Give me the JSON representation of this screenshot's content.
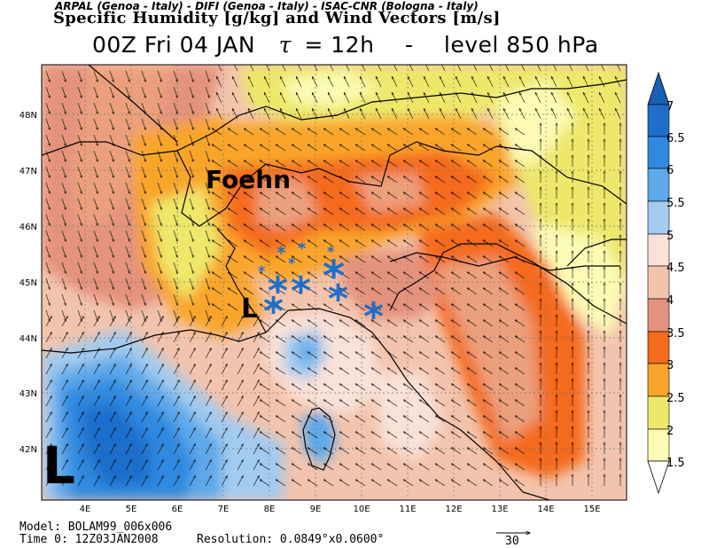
{
  "header": {
    "credits": "ARPAL (Genoa - Italy)  -  DIFI (Genoa - Italy)  -  ISAC-CNR (Bologna - Italy)",
    "title": "Specific Humidity [g/kg] and Wind Vectors [m/s]",
    "run_time": "00Z Fri 04 JAN",
    "tau_symbol": "τ",
    "tau_value": "= 12h",
    "separator": "-",
    "level": "level 850 hPa"
  },
  "axes": {
    "lat_labels": [
      "48N",
      "47N",
      "46N",
      "45N",
      "44N",
      "43N",
      "42N"
    ],
    "lat_values": [
      48,
      47,
      46,
      45,
      44,
      43,
      42
    ],
    "lon_labels": [
      "4E",
      "5E",
      "6E",
      "7E",
      "8E",
      "9E",
      "10E",
      "11E",
      "12E",
      "13E",
      "14E",
      "15E"
    ],
    "lon_values": [
      4,
      5,
      6,
      7,
      8,
      9,
      10,
      11,
      12,
      13,
      14,
      15
    ],
    "lon_range": [
      3.1,
      16.4
    ],
    "lat_range": [
      41.1,
      48.8
    ],
    "grid": true
  },
  "colorbar": {
    "levels": [
      "1.5",
      "2",
      "2.5",
      "3",
      "3.5",
      "4",
      "4.5",
      "5",
      "5.5",
      "6",
      "6.5",
      "7"
    ],
    "colors": [
      "#fdfbb4",
      "#ede86a",
      "#f9a52a",
      "#f56a1d",
      "#eba07d",
      "#e3927d",
      "#f3c4ad",
      "#fbe1d8",
      "#a2cbef",
      "#5da9ea",
      "#2f8ae0",
      "#1f6ecc",
      "#185fb6"
    ]
  },
  "annotations": {
    "foehn_label": "Foehn",
    "low_small": "L",
    "low_large": "L",
    "star_symbol": "*"
  },
  "footer": {
    "model": "Model: BOLAM99_006x006",
    "time0": "Time 0: 12Z03JAN2008",
    "resolution": "Resolution: 0.0849°x0.0600°",
    "vector_ref": "30"
  }
}
